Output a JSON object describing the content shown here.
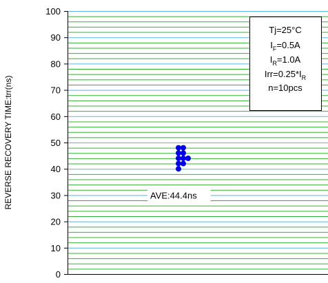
{
  "chart_data": {
    "type": "scatter",
    "ylabel": "REVERSE RECOVERY TIME:trr(ns)",
    "xlabel": "",
    "ylim": [
      0,
      100
    ],
    "y_ticks": [
      0,
      10,
      20,
      30,
      40,
      50,
      60,
      70,
      80,
      90,
      100
    ],
    "y_tick_labels": [
      "0",
      "10",
      "20",
      "30",
      "40",
      "50",
      "60",
      "70",
      "80",
      "90",
      "100"
    ],
    "y_minor_step": 2,
    "grid": true,
    "points": [
      {
        "group": 0,
        "y": 48
      },
      {
        "group": 0,
        "y": 46
      },
      {
        "group": 0,
        "y": 44
      },
      {
        "group": 0,
        "y": 42
      },
      {
        "group": 0,
        "y": 40
      },
      {
        "group": 1,
        "y": 48
      },
      {
        "group": 1,
        "y": 46
      },
      {
        "group": 1,
        "y": 44
      },
      {
        "group": 1,
        "y": 42
      },
      {
        "group": 2,
        "y": 44
      }
    ],
    "annotation": {
      "text": "AVE:44.4ns",
      "y": 30
    },
    "conditions_box": {
      "placement": "top-right",
      "lines": [
        {
          "main": "Tj=25°C",
          "sub": "",
          "tail": ""
        },
        {
          "main": "I",
          "sub": "F",
          "tail": "=0.5A"
        },
        {
          "main": "I",
          "sub": "R",
          "tail": "=1.0A"
        },
        {
          "main": "Irr=0.25*I",
          "sub": "R",
          "tail": ""
        },
        {
          "main": "n=10pcs",
          "sub": "",
          "tail": ""
        }
      ]
    },
    "colors": {
      "major_grid": "#5ab4e6",
      "minor_grid": "#33b033",
      "point": "#0000ee",
      "axis": "#000000",
      "text": "#000000"
    }
  }
}
